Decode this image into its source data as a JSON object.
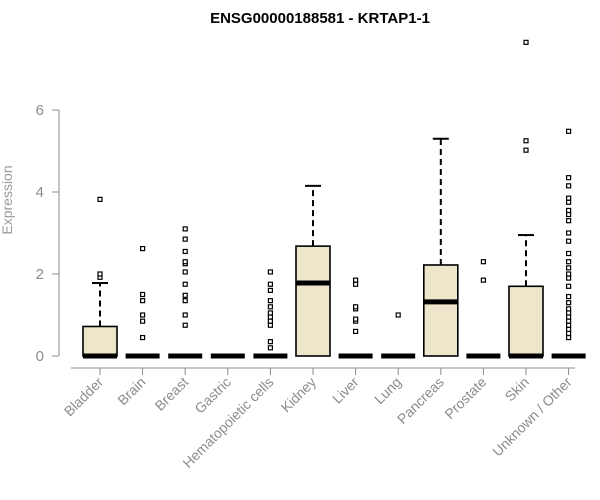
{
  "chart_data": {
    "type": "box",
    "title": "ENSG00000188581 - KRTAP1-1",
    "xlabel": "",
    "ylabel": "Expression",
    "ylim": [
      0,
      7.8
    ],
    "yticks": [
      0,
      2,
      4,
      6
    ],
    "box_fill": "#ede6cb",
    "categories": [
      "Bladder",
      "Brain",
      "Breast",
      "Gastric",
      "Hematopoietic cells",
      "Kidney",
      "Liver",
      "Lung",
      "Pancreas",
      "Prostate",
      "Skin",
      "Unknown / Other"
    ],
    "boxes": [
      {
        "q1": 0,
        "median": 0,
        "q3": 0.72,
        "whisker_low": 0,
        "whisker_high": 1.78,
        "outliers": [
          1.92,
          2.0,
          3.82
        ]
      },
      {
        "q1": 0,
        "median": 0,
        "q3": 0,
        "whisker_low": 0,
        "whisker_high": 0,
        "outliers": [
          0.45,
          0.85,
          1.0,
          1.35,
          1.5,
          2.62
        ]
      },
      {
        "q1": 0,
        "median": 0,
        "q3": 0,
        "whisker_low": 0,
        "whisker_high": 0,
        "outliers": [
          0.75,
          1.0,
          1.35,
          1.48,
          1.75,
          2.05,
          2.25,
          2.3,
          2.55,
          2.85,
          3.1
        ]
      },
      {
        "q1": 0,
        "median": 0,
        "q3": 0,
        "whisker_low": 0,
        "whisker_high": 0,
        "outliers": []
      },
      {
        "q1": 0,
        "median": 0,
        "q3": 0,
        "whisker_low": 0,
        "whisker_high": 0,
        "outliers": [
          0.2,
          0.35,
          0.75,
          0.85,
          0.95,
          1.05,
          1.2,
          1.35,
          1.6,
          1.75,
          2.05
        ]
      },
      {
        "q1": 0,
        "median": 1.78,
        "q3": 2.68,
        "whisker_low": 0,
        "whisker_high": 4.15,
        "outliers": []
      },
      {
        "q1": 0,
        "median": 0,
        "q3": 0,
        "whisker_low": 0,
        "whisker_high": 0,
        "outliers": [
          0.6,
          0.85,
          0.9,
          1.15,
          1.2,
          1.75,
          1.85
        ]
      },
      {
        "q1": 0,
        "median": 0,
        "q3": 0,
        "whisker_low": 0,
        "whisker_high": 0,
        "outliers": [
          1.0
        ]
      },
      {
        "q1": 0,
        "median": 1.32,
        "q3": 2.22,
        "whisker_low": 0,
        "whisker_high": 5.3,
        "outliers": []
      },
      {
        "q1": 0,
        "median": 0,
        "q3": 0,
        "whisker_low": 0,
        "whisker_high": 0,
        "outliers": [
          1.85,
          2.3
        ]
      },
      {
        "q1": 0,
        "median": 0,
        "q3": 1.7,
        "whisker_low": 0,
        "whisker_high": 2.95,
        "outliers": [
          5.02,
          5.25,
          7.65
        ]
      },
      {
        "q1": 0,
        "median": 0,
        "q3": 0,
        "whisker_low": 0,
        "whisker_high": 0,
        "outliers": [
          0.45,
          0.55,
          0.65,
          0.75,
          0.85,
          0.95,
          1.05,
          1.15,
          1.3,
          1.45,
          1.7,
          1.9,
          2.0,
          2.15,
          2.3,
          2.5,
          2.8,
          3.0,
          3.3,
          3.45,
          3.55,
          3.75,
          3.85,
          4.15,
          4.35,
          5.48
        ]
      }
    ]
  }
}
